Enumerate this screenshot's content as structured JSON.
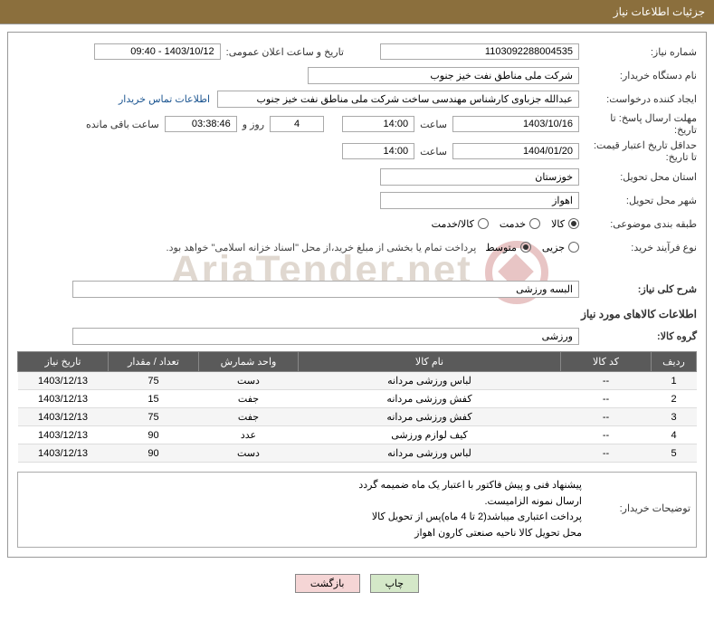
{
  "header": {
    "title": "جزئیات اطلاعات نیاز"
  },
  "colors": {
    "header_bg": "#8b6f3d",
    "header_text": "#ffffff",
    "table_header_bg": "#5a5a5a",
    "table_header_text": "#ffffff",
    "link_color": "#1a5490",
    "btn_print_bg": "#d4e8c8",
    "btn_back_bg": "#f5d5d5"
  },
  "form": {
    "need_number_label": "شماره نیاز:",
    "need_number": "1103092288004535",
    "announce_label": "تاریخ و ساعت اعلان عمومی:",
    "announce_value": "1403/10/12 - 09:40",
    "buyer_org_label": "نام دستگاه خریدار:",
    "buyer_org": "شرکت ملی مناطق نفت خیز جنوب",
    "requester_label": "ایجاد کننده درخواست:",
    "requester": "عبدالله جزباوی کارشناس مهندسی ساخت شرکت ملی مناطق نفت خیز جنوب",
    "contact_link": "اطلاعات تماس خریدار",
    "deadline_label": "مهلت ارسال پاسخ: تا تاریخ:",
    "deadline_date": "1403/10/16",
    "time_label": "ساعت",
    "deadline_time": "14:00",
    "days_value": "4",
    "days_suffix": "روز و",
    "remain_time": "03:38:46",
    "remain_suffix": "ساعت باقی مانده",
    "validity_label": "حداقل تاریخ اعتبار قیمت: تا تاریخ:",
    "validity_date": "1404/01/20",
    "validity_time": "14:00",
    "province_label": "استان محل تحویل:",
    "province": "خوزستان",
    "city_label": "شهر محل تحویل:",
    "city": "اهواز",
    "category_label": "طبقه بندی موضوعی:",
    "radio_kala": "کالا",
    "radio_khedmat": "خدمت",
    "radio_kala_khedmat": "کالا/خدمت",
    "process_label": "نوع فرآیند خرید:",
    "radio_jozi": "جزیی",
    "radio_motevasset": "متوسط",
    "process_note": "پرداخت تمام یا بخشی از مبلغ خرید،از محل \"اسناد خزانه اسلامی\" خواهد بود.",
    "summary_label": "شرح کلی نیاز:",
    "summary_value": "البسه ورزشی",
    "goods_section": "اطلاعات کالاهای مورد نیاز",
    "group_label": "گروه کالا:",
    "group_value": "ورزشی"
  },
  "table": {
    "headers": {
      "row": "ردیف",
      "code": "کد کالا",
      "name": "نام کالا",
      "unit": "واحد شمارش",
      "qty": "تعداد / مقدار",
      "date": "تاریخ نیاز"
    },
    "rows": [
      {
        "n": "1",
        "code": "--",
        "name": "لباس ورزشی مردانه",
        "unit": "دست",
        "qty": "75",
        "date": "1403/12/13"
      },
      {
        "n": "2",
        "code": "--",
        "name": "کفش ورزشی مردانه",
        "unit": "جفت",
        "qty": "15",
        "date": "1403/12/13"
      },
      {
        "n": "3",
        "code": "--",
        "name": "کفش ورزشی مردانه",
        "unit": "جفت",
        "qty": "75",
        "date": "1403/12/13"
      },
      {
        "n": "4",
        "code": "--",
        "name": "کیف لوازم ورزشی",
        "unit": "عدد",
        "qty": "90",
        "date": "1403/12/13"
      },
      {
        "n": "5",
        "code": "--",
        "name": "لباس ورزشی مردانه",
        "unit": "دست",
        "qty": "90",
        "date": "1403/12/13"
      }
    ]
  },
  "description": {
    "label": "توضیحات خریدار:",
    "line1": "پیشنهاد فنی و پیش فاکتور با اعتبار یک ماه ضمیمه گردد",
    "line2": "ارسال نمونه الزامیست.",
    "line3": "پرداخت اعتباری میباشد(2 تا 4 ماه)پس از تحویل کالا",
    "line4": "محل تحویل کالا ناحیه صنعتی کارون اهواز"
  },
  "buttons": {
    "print": "چاپ",
    "back": "بازگشت"
  },
  "watermark": "AriaTender.net"
}
